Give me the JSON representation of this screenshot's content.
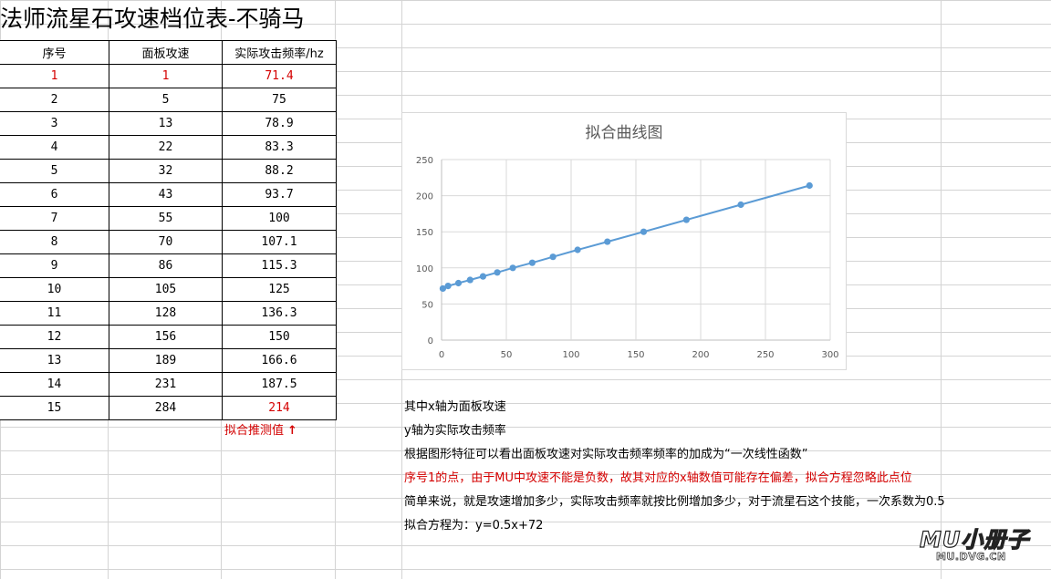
{
  "sheet": {
    "title": "法师流星石攻速档位表-不骑马",
    "headers": [
      "序号",
      "面板攻速",
      "实际攻击频率/hz"
    ],
    "rows": [
      [
        "1",
        "1",
        "71.4"
      ],
      [
        "2",
        "5",
        "75"
      ],
      [
        "3",
        "13",
        "78.9"
      ],
      [
        "4",
        "22",
        "83.3"
      ],
      [
        "5",
        "32",
        "88.2"
      ],
      [
        "6",
        "43",
        "93.7"
      ],
      [
        "7",
        "55",
        "100"
      ],
      [
        "8",
        "70",
        "107.1"
      ],
      [
        "9",
        "86",
        "115.3"
      ],
      [
        "10",
        "105",
        "125"
      ],
      [
        "11",
        "128",
        "136.3"
      ],
      [
        "12",
        "156",
        "150"
      ],
      [
        "13",
        "189",
        "166.6"
      ],
      [
        "14",
        "231",
        "187.5"
      ],
      [
        "15",
        "284",
        "214"
      ]
    ],
    "fit_note": "拟合推测值",
    "fit_note_arrow": "↑",
    "highlight_color": "#d40000"
  },
  "chart_data": {
    "type": "scatter",
    "title": "拟合曲线图",
    "x": [
      1,
      5,
      13,
      22,
      32,
      43,
      55,
      70,
      86,
      105,
      128,
      156,
      189,
      231,
      284
    ],
    "y": [
      71.4,
      75,
      78.9,
      83.3,
      88.2,
      93.7,
      100,
      107.1,
      115.3,
      125,
      136.3,
      150,
      166.6,
      187.5,
      214
    ],
    "xlim": [
      0,
      300
    ],
    "ylim": [
      0,
      250
    ],
    "xticks": [
      "0",
      "50",
      "100",
      "150",
      "200",
      "250",
      "300"
    ],
    "yticks": [
      "0",
      "50",
      "100",
      "150",
      "200",
      "250"
    ],
    "grid": true,
    "lines_connected": true,
    "series_color": "#5b9bd5"
  },
  "notes": [
    "其中x轴为面板攻速",
    "y轴为实际攻击频率",
    "根据图形特征可以看出面板攻速对实际攻击频率频率的加成为“一次线性函数”",
    "序号1的点，由于MU中攻速不能是负数，故其对应的x轴数值可能存在偏差，拟合方程忽略此点位",
    "简单来说，就是攻速增加多少，实际攻击频率就按比例增加多少，对于流星石这个技能，一次系数为0.5",
    "拟合方程为：y=0.5x+72"
  ],
  "watermark": {
    "main": "MU小册子",
    "sub": "MU.DVG.CN"
  }
}
